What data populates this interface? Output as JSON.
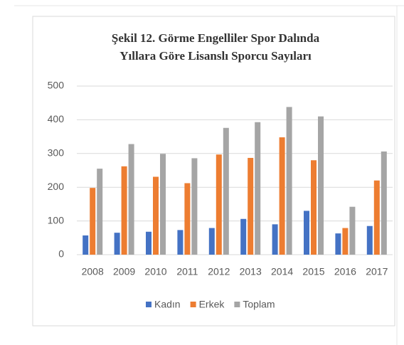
{
  "chart_data": {
    "type": "bar",
    "title": [
      "Şekil 12. Görme Engelliler Spor Dalında",
      "Yıllara Göre Lisanslı Sporcu Sayıları"
    ],
    "categories": [
      "2008",
      "2009",
      "2010",
      "2011",
      "2012",
      "2013",
      "2014",
      "2015",
      "2016",
      "2017"
    ],
    "series": [
      {
        "name": "Kadın",
        "color": "#4472c4",
        "values": [
          57,
          65,
          68,
          73,
          79,
          106,
          90,
          130,
          63,
          85
        ]
      },
      {
        "name": "Erkek",
        "color": "#ed7d31",
        "values": [
          198,
          262,
          231,
          212,
          297,
          287,
          348,
          280,
          79,
          220
        ]
      },
      {
        "name": "Toplam",
        "color": "#a5a5a5",
        "values": [
          255,
          328,
          299,
          286,
          376,
          393,
          438,
          410,
          142,
          306
        ]
      }
    ],
    "ylim": [
      0,
      500
    ],
    "yticks": [
      0,
      100,
      200,
      300,
      400,
      500
    ],
    "grid": true,
    "legend": "bottom"
  }
}
